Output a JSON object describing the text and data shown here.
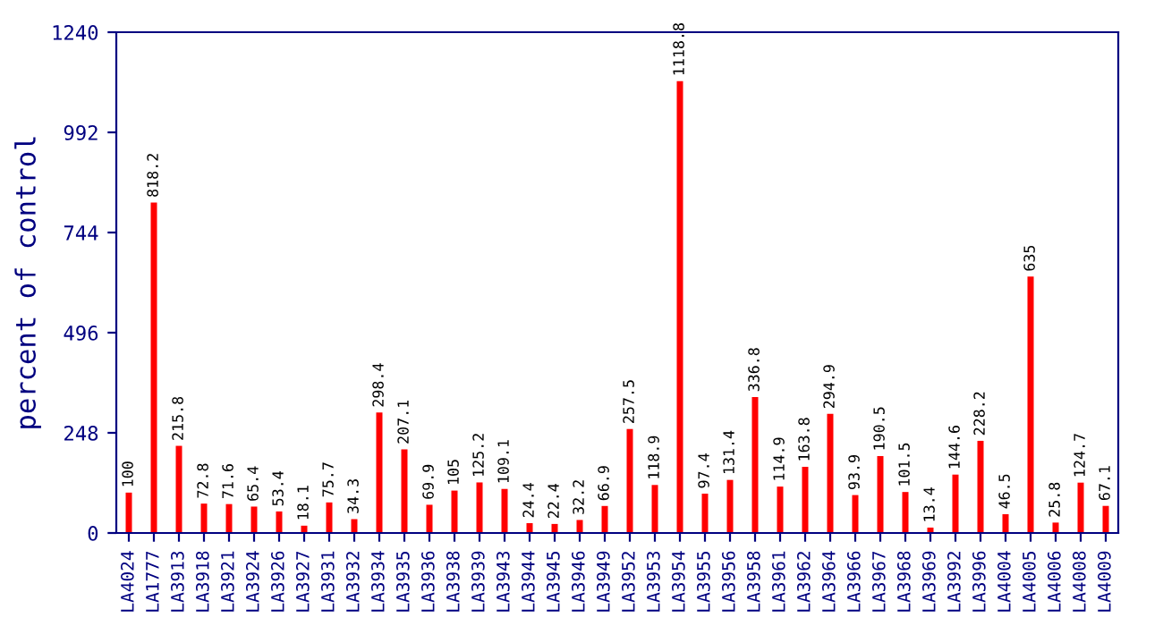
{
  "chart_data": {
    "type": "bar",
    "ylabel": "percent of control",
    "categories": [
      "LA4024",
      "LA1777",
      "LA3913",
      "LA3918",
      "LA3921",
      "LA3924",
      "LA3926",
      "LA3927",
      "LA3931",
      "LA3932",
      "LA3934",
      "LA3935",
      "LA3936",
      "LA3938",
      "LA3939",
      "LA3943",
      "LA3944",
      "LA3945",
      "LA3946",
      "LA3949",
      "LA3952",
      "LA3953",
      "LA3954",
      "LA3955",
      "LA3956",
      "LA3958",
      "LA3961",
      "LA3962",
      "LA3964",
      "LA3966",
      "LA3967",
      "LA3968",
      "LA3969",
      "LA3992",
      "LA3996",
      "LA4004",
      "LA4005",
      "LA4006",
      "LA4008",
      "LA4009"
    ],
    "values": [
      100,
      818.2,
      215.8,
      72.8,
      71.6,
      65.4,
      53.4,
      18.1,
      75.7,
      34.3,
      298.4,
      207.1,
      69.9,
      105,
      125.2,
      109.1,
      24.4,
      22.4,
      32.2,
      66.9,
      257.5,
      118.9,
      1118.8,
      97.4,
      131.4,
      336.8,
      114.9,
      163.8,
      294.9,
      93.9,
      190.5,
      101.5,
      13.4,
      144.6,
      228.2,
      46.5,
      635,
      25.8,
      124.7,
      67.1
    ],
    "color": "#ff0000",
    "ylim": [
      0,
      1240
    ],
    "yticks": [
      0,
      248,
      496,
      744,
      992,
      1240
    ],
    "data_labels": true,
    "grid": false,
    "legend": false
  }
}
